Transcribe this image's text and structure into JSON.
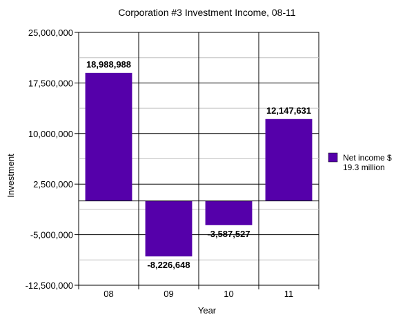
{
  "chart_data": {
    "type": "bar",
    "title": "Corporation #3 Investment Income, 08-11",
    "xlabel": "Year",
    "ylabel": "Investment",
    "categories": [
      "08",
      "09",
      "10",
      "11"
    ],
    "series": [
      {
        "name": "Net income $ 19.3 million",
        "values": [
          18988988,
          -8226648,
          -3587527,
          12147631
        ],
        "color": "#5500aa"
      }
    ],
    "data_labels": [
      "18,988,988",
      "-8,226,648",
      "-3,587,527",
      "12,147,631"
    ],
    "ylim": [
      -12500000,
      25000000
    ],
    "yticks": [
      -12500000,
      -5000000,
      2500000,
      10000000,
      17500000,
      25000000
    ],
    "ytick_labels": [
      "-12,500,000",
      "-5,000,000",
      "2,500,000",
      "10,000,000",
      "17,500,000",
      "25,000,000"
    ],
    "legend": {
      "position": "right",
      "lines": [
        "Net income $",
        "19.3 million"
      ]
    },
    "grid": true
  }
}
